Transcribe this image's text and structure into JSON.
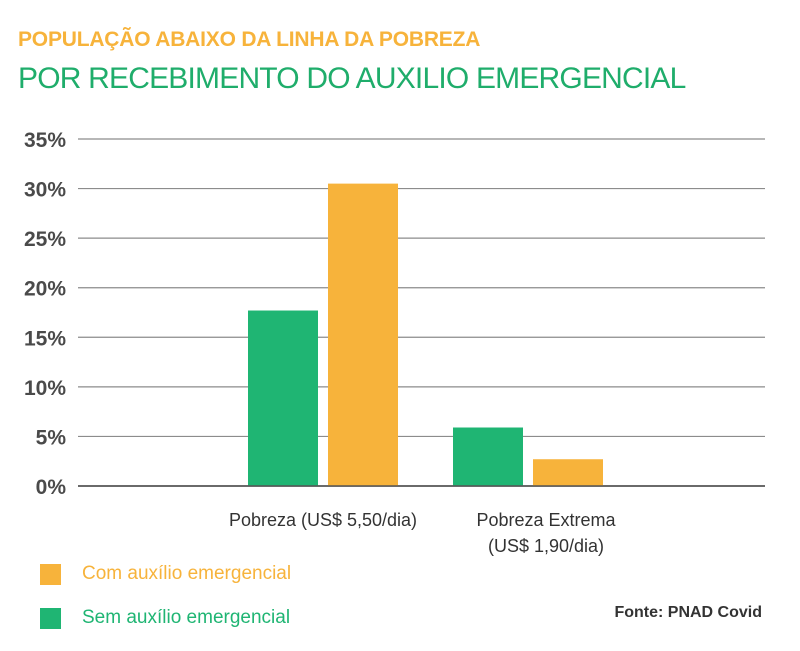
{
  "colors": {
    "title": "#f7b33b",
    "subtitle": "#1fad6b",
    "com": "#f7b33b",
    "sem": "#1fb573",
    "grid": "#8c8c8c",
    "text": "#4a4a4a"
  },
  "chart_data": {
    "type": "bar",
    "title": "POPULAÇÃO ABAIXO DA LINHA DA POBREZA",
    "subtitle": "POR RECEBIMENTO DO AUXILIO EMERGENCIAL",
    "categories": [
      [
        "Pobreza (US$ 5,50/dia)"
      ],
      [
        "Pobreza Extrema",
        "(US$ 1,90/dia)"
      ]
    ],
    "series": [
      {
        "name": "Sem auxílio emergencial",
        "color_key": "sem",
        "values": [
          17.7,
          5.9
        ]
      },
      {
        "name": "Com auxílio emergencial",
        "color_key": "com",
        "values": [
          30.5,
          2.7
        ]
      }
    ],
    "yticks": [
      0,
      5,
      10,
      15,
      20,
      25,
      30,
      35
    ],
    "ytick_labels": [
      "0%",
      "5%",
      "10%",
      "15%",
      "20%",
      "25%",
      "30%",
      "35%"
    ],
    "ylim": [
      0,
      35
    ],
    "grid": true,
    "legend": {
      "position": "bottom-left",
      "items": [
        {
          "label": "Com auxílio emergencial",
          "color_key": "com"
        },
        {
          "label": "Sem auxílio emergencial",
          "color_key": "sem"
        }
      ]
    },
    "source": "Fonte: PNAD Covid"
  }
}
